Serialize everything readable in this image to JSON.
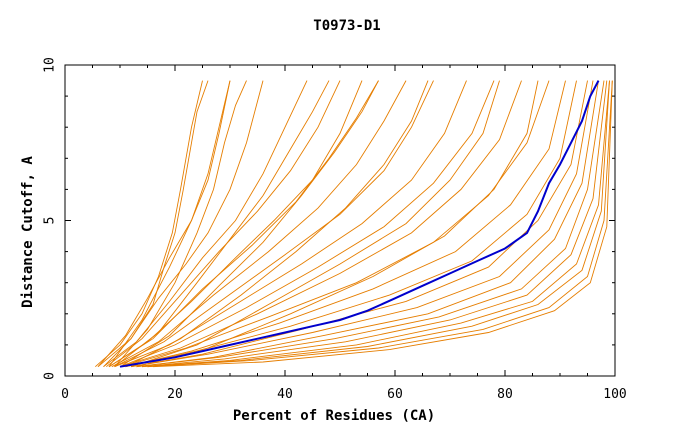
{
  "chart_data": {
    "type": "line",
    "title": "T0973-D1",
    "xlabel": "Percent of Residues (CA)",
    "ylabel": "Distance Cutoff, A",
    "xlim": [
      0,
      100
    ],
    "ylim": [
      0,
      10
    ],
    "x_ticks": [
      "0",
      "20",
      "40",
      "60",
      "80",
      "100"
    ],
    "y_ticks": [
      "0",
      "5",
      "10"
    ],
    "grid": false,
    "legend": "none",
    "colors": {
      "models": "#e67e00",
      "highlight": "#0000cc",
      "axis": "#000000"
    },
    "series": [
      {
        "values": [
          [
            6,
            0.3
          ],
          [
            12,
            1.2
          ],
          [
            16,
            2.3
          ],
          [
            18,
            3.5
          ],
          [
            20,
            4.6
          ],
          [
            21.5,
            6
          ],
          [
            23,
            7.5
          ],
          [
            24,
            8.5
          ],
          [
            26,
            9.5
          ]
        ]
      },
      {
        "values": [
          [
            5.5,
            0.3
          ],
          [
            10,
            1
          ],
          [
            14,
            2
          ],
          [
            17,
            3.2
          ],
          [
            19.5,
            4.6
          ],
          [
            21,
            6
          ],
          [
            23,
            8
          ],
          [
            25,
            9.5
          ]
        ]
      },
      {
        "values": [
          [
            6,
            0.3
          ],
          [
            11,
            1.3
          ],
          [
            15,
            2.5
          ],
          [
            19,
            3.8
          ],
          [
            23,
            5
          ],
          [
            26,
            6.5
          ],
          [
            28,
            8
          ],
          [
            30,
            9.5
          ]
        ]
      },
      {
        "values": [
          [
            7,
            0.3
          ],
          [
            12,
            1.2
          ],
          [
            17,
            2.5
          ],
          [
            22,
            3.6
          ],
          [
            26,
            4.6
          ],
          [
            30,
            6
          ],
          [
            33,
            7.5
          ],
          [
            36,
            9.5
          ]
        ]
      },
      {
        "values": [
          [
            7,
            0.3
          ],
          [
            13,
            1.1
          ],
          [
            19,
            2.4
          ],
          [
            25,
            3.8
          ],
          [
            31,
            5
          ],
          [
            36,
            6.5
          ],
          [
            40,
            8
          ],
          [
            44,
            9.5
          ]
        ]
      },
      {
        "values": [
          [
            7.5,
            0.3
          ],
          [
            14,
            1.2
          ],
          [
            21,
            2.6
          ],
          [
            28,
            4
          ],
          [
            35,
            5.3
          ],
          [
            41,
            6.6
          ],
          [
            46,
            8
          ],
          [
            50,
            9.5
          ]
        ]
      },
      {
        "values": [
          [
            8,
            0.3
          ],
          [
            15,
            1.1
          ],
          [
            23,
            2.4
          ],
          [
            31,
            3.8
          ],
          [
            38,
            5
          ],
          [
            45,
            6.3
          ],
          [
            50,
            7.8
          ],
          [
            54,
            9.5
          ]
        ]
      },
      {
        "values": [
          [
            8,
            0.3
          ],
          [
            16,
            1.2
          ],
          [
            25,
            2.8
          ],
          [
            34,
            4.2
          ],
          [
            42,
            5.6
          ],
          [
            48,
            7
          ],
          [
            53,
            8.3
          ],
          [
            57,
            9.5
          ]
        ]
      },
      {
        "values": [
          [
            8.5,
            0.3
          ],
          [
            17,
            1.1
          ],
          [
            27,
            2.6
          ],
          [
            37,
            4
          ],
          [
            46,
            5.4
          ],
          [
            53,
            6.8
          ],
          [
            58,
            8.2
          ],
          [
            62,
            9.5
          ]
        ]
      },
      {
        "values": [
          [
            9,
            0.3
          ],
          [
            18,
            1.1
          ],
          [
            29,
            2.5
          ],
          [
            40,
            3.9
          ],
          [
            50,
            5.2
          ],
          [
            58,
            6.6
          ],
          [
            63,
            8
          ],
          [
            67,
            9.5
          ]
        ]
      },
      {
        "values": [
          [
            9,
            0.3
          ],
          [
            19,
            1
          ],
          [
            31,
            2.3
          ],
          [
            43,
            3.6
          ],
          [
            54,
            4.9
          ],
          [
            63,
            6.3
          ],
          [
            69,
            7.8
          ],
          [
            73,
            9.5
          ]
        ]
      },
      {
        "values": [
          [
            10,
            0.3
          ],
          [
            20,
            1
          ],
          [
            33,
            2.2
          ],
          [
            46,
            3.5
          ],
          [
            58,
            4.8
          ],
          [
            67,
            6.2
          ],
          [
            74,
            7.8
          ],
          [
            78,
            9.5
          ]
        ]
      },
      {
        "values": [
          [
            10,
            0.3
          ],
          [
            21,
            0.9
          ],
          [
            35,
            2
          ],
          [
            50,
            3.3
          ],
          [
            63,
            4.6
          ],
          [
            72,
            6
          ],
          [
            79,
            7.6
          ],
          [
            83,
            9.5
          ]
        ]
      },
      {
        "values": [
          [
            10.5,
            0.3
          ],
          [
            22,
            0.9
          ],
          [
            37,
            1.9
          ],
          [
            53,
            3
          ],
          [
            67,
            4.3
          ],
          [
            77,
            5.8
          ],
          [
            84,
            7.5
          ],
          [
            88,
            9.5
          ]
        ]
      },
      {
        "values": [
          [
            11,
            0.3
          ],
          [
            23,
            0.8
          ],
          [
            39,
            1.7
          ],
          [
            56,
            2.8
          ],
          [
            71,
            4
          ],
          [
            81,
            5.5
          ],
          [
            88,
            7.3
          ],
          [
            91,
            9.5
          ]
        ]
      },
      {
        "values": [
          [
            11,
            0.3
          ],
          [
            24,
            0.8
          ],
          [
            41,
            1.6
          ],
          [
            59,
            2.6
          ],
          [
            74,
            3.7
          ],
          [
            84,
            5.2
          ],
          [
            90,
            7
          ],
          [
            93,
            9.5
          ]
        ]
      },
      {
        "values": [
          [
            12,
            0.3
          ],
          [
            25,
            0.7
          ],
          [
            43,
            1.5
          ],
          [
            62,
            2.4
          ],
          [
            77,
            3.5
          ],
          [
            86,
            5
          ],
          [
            92,
            6.8
          ],
          [
            95,
            9.5
          ]
        ]
      },
      {
        "values": [
          [
            12,
            0.3
          ],
          [
            26,
            0.7
          ],
          [
            45,
            1.4
          ],
          [
            64,
            2.2
          ],
          [
            79,
            3.2
          ],
          [
            88,
            4.7
          ],
          [
            93,
            6.5
          ],
          [
            96,
            9.5
          ]
        ]
      },
      {
        "values": [
          [
            13,
            0.3
          ],
          [
            27,
            0.6
          ],
          [
            47,
            1.3
          ],
          [
            66,
            2
          ],
          [
            81,
            3
          ],
          [
            89,
            4.4
          ],
          [
            94,
            6.2
          ],
          [
            97,
            9.5
          ]
        ]
      },
      {
        "values": [
          [
            13,
            0.3
          ],
          [
            28,
            0.6
          ],
          [
            49,
            1.2
          ],
          [
            68,
            1.9
          ],
          [
            83,
            2.8
          ],
          [
            91,
            4.1
          ],
          [
            95,
            6
          ],
          [
            98,
            9.5
          ]
        ]
      },
      {
        "values": [
          [
            14,
            0.3
          ],
          [
            29,
            0.55
          ],
          [
            51,
            1.1
          ],
          [
            70,
            1.8
          ],
          [
            84,
            2.6
          ],
          [
            92,
            3.9
          ],
          [
            96,
            5.7
          ],
          [
            98.5,
            9.5
          ]
        ]
      },
      {
        "values": [
          [
            14,
            0.3
          ],
          [
            30,
            0.5
          ],
          [
            53,
            1
          ],
          [
            72,
            1.7
          ],
          [
            85,
            2.4
          ],
          [
            93,
            3.6
          ],
          [
            97,
            5.5
          ],
          [
            99,
            9.5
          ]
        ]
      },
      {
        "values": [
          [
            15,
            0.3
          ],
          [
            32,
            0.5
          ],
          [
            55,
            0.95
          ],
          [
            74,
            1.6
          ],
          [
            86,
            2.3
          ],
          [
            94,
            3.4
          ],
          [
            97.5,
            5.3
          ],
          [
            99,
            9.5
          ]
        ]
      },
      {
        "values": [
          [
            15,
            0.3
          ],
          [
            34,
            0.5
          ],
          [
            57,
            0.9
          ],
          [
            76,
            1.5
          ],
          [
            88,
            2.2
          ],
          [
            95,
            3.2
          ],
          [
            98,
            5
          ],
          [
            99.5,
            9.5
          ]
        ]
      },
      {
        "values": [
          [
            16,
            0.3
          ],
          [
            36,
            0.45
          ],
          [
            59,
            0.85
          ],
          [
            77,
            1.4
          ],
          [
            89,
            2.1
          ],
          [
            95.5,
            3
          ],
          [
            98.5,
            4.8
          ],
          [
            99.5,
            9.5
          ]
        ]
      },
      {
        "values": [
          [
            9,
            0.3
          ],
          [
            15,
            1.5
          ],
          [
            20,
            3
          ],
          [
            24,
            4.6
          ],
          [
            27,
            6
          ],
          [
            29,
            7.5
          ],
          [
            31,
            8.7
          ],
          [
            33,
            9.5
          ]
        ]
      },
      {
        "values": [
          [
            8,
            0.3
          ],
          [
            14,
            1.8
          ],
          [
            19,
            3.5
          ],
          [
            23,
            5
          ],
          [
            26,
            6.3
          ],
          [
            28,
            7.8
          ],
          [
            30,
            9.5
          ]
        ]
      },
      {
        "values": [
          [
            9,
            0.3
          ],
          [
            17,
            1.4
          ],
          [
            24,
            3
          ],
          [
            30,
            4.4
          ],
          [
            36,
            5.8
          ],
          [
            41,
            7.3
          ],
          [
            45,
            8.5
          ],
          [
            48,
            9.5
          ]
        ]
      },
      {
        "values": [
          [
            10,
            0.3
          ],
          [
            19,
            1.3
          ],
          [
            28,
            2.9
          ],
          [
            36,
            4.3
          ],
          [
            43,
            5.8
          ],
          [
            49,
            7.2
          ],
          [
            54,
            8.5
          ],
          [
            57,
            9.5
          ]
        ]
      },
      {
        "values": [
          [
            11,
            0.3
          ],
          [
            21,
            1.2
          ],
          [
            32,
            2.6
          ],
          [
            42,
            4
          ],
          [
            51,
            5.4
          ],
          [
            58,
            6.8
          ],
          [
            63,
            8.2
          ],
          [
            66,
            9.5
          ]
        ]
      },
      {
        "values": [
          [
            12,
            0.3
          ],
          [
            24,
            1
          ],
          [
            37,
            2.3
          ],
          [
            50,
            3.6
          ],
          [
            62,
            4.9
          ],
          [
            70,
            6.3
          ],
          [
            76,
            7.8
          ],
          [
            79,
            9.5
          ]
        ]
      },
      {
        "values": [
          [
            13,
            0.3
          ],
          [
            26,
            0.9
          ],
          [
            41,
            2
          ],
          [
            56,
            3.2
          ],
          [
            69,
            4.5
          ],
          [
            78,
            6
          ],
          [
            84,
            7.8
          ],
          [
            86,
            9.5
          ]
        ]
      }
    ],
    "highlight_series": {
      "values": [
        [
          10,
          0.3
        ],
        [
          15,
          0.45
        ],
        [
          20,
          0.6
        ],
        [
          25,
          0.8
        ],
        [
          30,
          1
        ],
        [
          35,
          1.2
        ],
        [
          40,
          1.4
        ],
        [
          45,
          1.6
        ],
        [
          50,
          1.8
        ],
        [
          55,
          2.1
        ],
        [
          60,
          2.5
        ],
        [
          65,
          2.9
        ],
        [
          70,
          3.3
        ],
        [
          75,
          3.7
        ],
        [
          80,
          4.1
        ],
        [
          84,
          4.6
        ],
        [
          86,
          5.3
        ],
        [
          88,
          6.2
        ],
        [
          90,
          6.8
        ],
        [
          92,
          7.5
        ],
        [
          94,
          8.2
        ],
        [
          95.5,
          9
        ],
        [
          97,
          9.5
        ]
      ]
    }
  }
}
